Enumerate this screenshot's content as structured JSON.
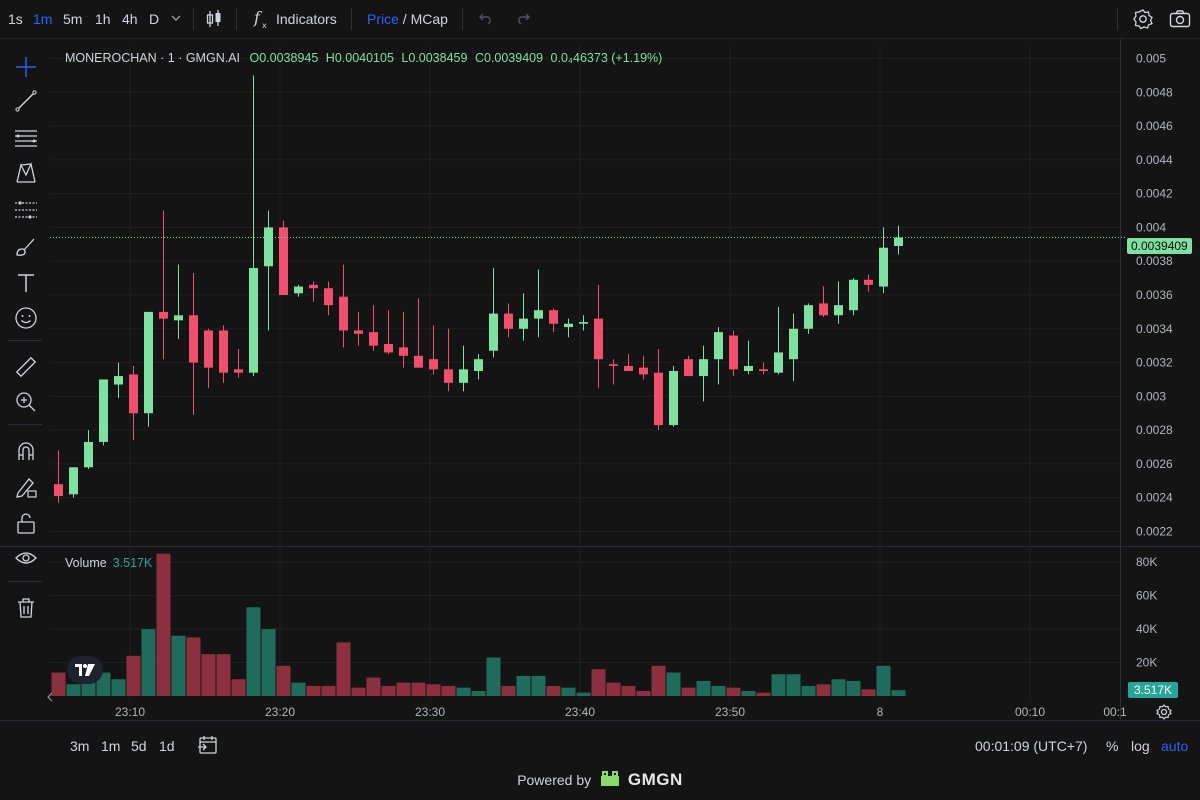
{
  "toolbar": {
    "timeframes": [
      "1s",
      "1m",
      "5m",
      "1h",
      "4h",
      "D"
    ],
    "active_timeframe": "1m",
    "indicators_label": "Indicators",
    "price_label": "Price",
    "mcap_label": "MCap",
    "toggle_sep": "/"
  },
  "legend": {
    "symbol": "MONEROCHAN · 1 · GMGN.AI",
    "open": "O0.0038945",
    "high": "H0.0040105",
    "low": "L0.0038459",
    "close": "C0.0039409",
    "change": "0.0₄46373 (+1.19%)"
  },
  "volume_legend": {
    "label": "Volume",
    "value": "3.517K"
  },
  "price_tag": "0.0039409",
  "volume_tag": "3.517K",
  "bottom": {
    "ranges": [
      "3m",
      "1m",
      "5d",
      "1d"
    ],
    "clock": "00:01:09 (UTC+7)",
    "percent": "%",
    "log": "log",
    "auto": "auto"
  },
  "footer": {
    "powered_by": "Powered by",
    "brand": "GMGN"
  },
  "colors": {
    "up": "#7ee0a1",
    "down": "#f0506e",
    "vol_up": "#1f6b5c",
    "vol_down": "#8c2f3e",
    "accent": "#2962ff",
    "background": "#141414",
    "grid": "#1f1f1f"
  },
  "chart_data": {
    "type": "candlestick",
    "x_tick_labels": [
      "23:10",
      "23:20",
      "23:30",
      "23:40",
      "23:50",
      "8",
      "00:10",
      "00:1"
    ],
    "y_tick_labels": [
      "0.005",
      "0.0048",
      "0.0046",
      "0.0044",
      "0.0042",
      "0.004",
      "0.0038",
      "0.0036",
      "0.0034",
      "0.0032",
      "0.003",
      "0.0028",
      "0.0026",
      "0.0024",
      "0.0022"
    ],
    "ylim": [
      0.00212,
      0.00508
    ],
    "volume_tick_labels": [
      "80K",
      "60K",
      "40K",
      "20K"
    ],
    "volume_ylim": [
      0,
      86000
    ],
    "last_price": 0.0039409,
    "candles": [
      {
        "o": 0.00248,
        "h": 0.00268,
        "l": 0.00237,
        "c": 0.00241,
        "v": 14000
      },
      {
        "o": 0.00242,
        "h": 0.00258,
        "l": 0.0024,
        "c": 0.00258,
        "v": 7000
      },
      {
        "o": 0.00258,
        "h": 0.0028,
        "l": 0.00257,
        "c": 0.00273,
        "v": 10000
      },
      {
        "o": 0.00273,
        "h": 0.0031,
        "l": 0.00271,
        "c": 0.0031,
        "v": 14000
      },
      {
        "o": 0.00307,
        "h": 0.0032,
        "l": 0.00299,
        "c": 0.00312,
        "v": 10000
      },
      {
        "o": 0.00313,
        "h": 0.00318,
        "l": 0.00274,
        "c": 0.0029,
        "v": 24000
      },
      {
        "o": 0.0029,
        "h": 0.0035,
        "l": 0.00282,
        "c": 0.0035,
        "v": 40000
      },
      {
        "o": 0.0035,
        "h": 0.0041,
        "l": 0.00322,
        "c": 0.00346,
        "v": 85000
      },
      {
        "o": 0.00345,
        "h": 0.00378,
        "l": 0.00334,
        "c": 0.00348,
        "v": 36000
      },
      {
        "o": 0.00348,
        "h": 0.00373,
        "l": 0.00289,
        "c": 0.0032,
        "v": 35000
      },
      {
        "o": 0.00339,
        "h": 0.0034,
        "l": 0.00305,
        "c": 0.00317,
        "v": 25000
      },
      {
        "o": 0.00339,
        "h": 0.00342,
        "l": 0.00308,
        "c": 0.00314,
        "v": 25000
      },
      {
        "o": 0.00316,
        "h": 0.00328,
        "l": 0.00311,
        "c": 0.00314,
        "v": 10000
      },
      {
        "o": 0.00314,
        "h": 0.0049,
        "l": 0.00312,
        "c": 0.00376,
        "v": 53000
      },
      {
        "o": 0.00377,
        "h": 0.0041,
        "l": 0.00339,
        "c": 0.004,
        "v": 40000
      },
      {
        "o": 0.004,
        "h": 0.00404,
        "l": 0.0036,
        "c": 0.0036,
        "v": 18000
      },
      {
        "o": 0.00361,
        "h": 0.00366,
        "l": 0.00359,
        "c": 0.00365,
        "v": 8000
      },
      {
        "o": 0.00366,
        "h": 0.00368,
        "l": 0.00356,
        "c": 0.00364,
        "v": 6000
      },
      {
        "o": 0.00364,
        "h": 0.00368,
        "l": 0.00348,
        "c": 0.00354,
        "v": 6000
      },
      {
        "o": 0.00359,
        "h": 0.00378,
        "l": 0.00329,
        "c": 0.00339,
        "v": 32000
      },
      {
        "o": 0.00339,
        "h": 0.0035,
        "l": 0.0033,
        "c": 0.00337,
        "v": 5000
      },
      {
        "o": 0.00338,
        "h": 0.00354,
        "l": 0.00327,
        "c": 0.0033,
        "v": 11000
      },
      {
        "o": 0.00331,
        "h": 0.00351,
        "l": 0.00325,
        "c": 0.00326,
        "v": 6000
      },
      {
        "o": 0.00329,
        "h": 0.0035,
        "l": 0.00317,
        "c": 0.00324,
        "v": 8000
      },
      {
        "o": 0.00324,
        "h": 0.00358,
        "l": 0.00317,
        "c": 0.00317,
        "v": 8000
      },
      {
        "o": 0.00322,
        "h": 0.00342,
        "l": 0.00313,
        "c": 0.00316,
        "v": 7000
      },
      {
        "o": 0.00316,
        "h": 0.0034,
        "l": 0.00303,
        "c": 0.00308,
        "v": 6000
      },
      {
        "o": 0.00308,
        "h": 0.0033,
        "l": 0.00303,
        "c": 0.00316,
        "v": 5000
      },
      {
        "o": 0.00315,
        "h": 0.00325,
        "l": 0.0031,
        "c": 0.00322,
        "v": 3000
      },
      {
        "o": 0.00327,
        "h": 0.00376,
        "l": 0.00323,
        "c": 0.00349,
        "v": 23000
      },
      {
        "o": 0.00349,
        "h": 0.00355,
        "l": 0.00335,
        "c": 0.0034,
        "v": 6000
      },
      {
        "o": 0.0034,
        "h": 0.00361,
        "l": 0.00333,
        "c": 0.00346,
        "v": 12000
      },
      {
        "o": 0.00346,
        "h": 0.00375,
        "l": 0.00335,
        "c": 0.00351,
        "v": 12000
      },
      {
        "o": 0.00351,
        "h": 0.00352,
        "l": 0.00338,
        "c": 0.00343,
        "v": 6000
      },
      {
        "o": 0.00341,
        "h": 0.00346,
        "l": 0.00335,
        "c": 0.00343,
        "v": 5000
      },
      {
        "o": 0.00343,
        "h": 0.00348,
        "l": 0.00339,
        "c": 0.00344,
        "v": 2000
      },
      {
        "o": 0.00346,
        "h": 0.00366,
        "l": 0.00305,
        "c": 0.00322,
        "v": 16000
      },
      {
        "o": 0.00319,
        "h": 0.00322,
        "l": 0.00307,
        "c": 0.00318,
        "v": 8000
      },
      {
        "o": 0.00318,
        "h": 0.00325,
        "l": 0.00315,
        "c": 0.00315,
        "v": 6000
      },
      {
        "o": 0.00317,
        "h": 0.00324,
        "l": 0.0031,
        "c": 0.00313,
        "v": 3000
      },
      {
        "o": 0.00314,
        "h": 0.00328,
        "l": 0.0028,
        "c": 0.00283,
        "v": 18000
      },
      {
        "o": 0.00283,
        "h": 0.00318,
        "l": 0.00282,
        "c": 0.00315,
        "v": 14000
      },
      {
        "o": 0.00322,
        "h": 0.00324,
        "l": 0.00312,
        "c": 0.00312,
        "v": 5000
      },
      {
        "o": 0.00312,
        "h": 0.0033,
        "l": 0.00297,
        "c": 0.00322,
        "v": 9000
      },
      {
        "o": 0.00322,
        "h": 0.00341,
        "l": 0.00307,
        "c": 0.00338,
        "v": 6000
      },
      {
        "o": 0.00336,
        "h": 0.00339,
        "l": 0.00312,
        "c": 0.00316,
        "v": 5000
      },
      {
        "o": 0.00315,
        "h": 0.00333,
        "l": 0.00313,
        "c": 0.00318,
        "v": 3000
      },
      {
        "o": 0.00316,
        "h": 0.0032,
        "l": 0.00313,
        "c": 0.00315,
        "v": 2000
      },
      {
        "o": 0.00314,
        "h": 0.00353,
        "l": 0.00313,
        "c": 0.00326,
        "v": 13000
      },
      {
        "o": 0.00322,
        "h": 0.00349,
        "l": 0.00309,
        "c": 0.0034,
        "v": 13000
      },
      {
        "o": 0.0034,
        "h": 0.00355,
        "l": 0.00337,
        "c": 0.00354,
        "v": 6000
      },
      {
        "o": 0.00355,
        "h": 0.00365,
        "l": 0.00347,
        "c": 0.00348,
        "v": 7000
      },
      {
        "o": 0.00348,
        "h": 0.00368,
        "l": 0.00343,
        "c": 0.00354,
        "v": 10000
      },
      {
        "o": 0.00351,
        "h": 0.0037,
        "l": 0.00348,
        "c": 0.00369,
        "v": 9000
      },
      {
        "o": 0.00369,
        "h": 0.00372,
        "l": 0.00362,
        "c": 0.00366,
        "v": 4000
      },
      {
        "o": 0.00365,
        "h": 0.004,
        "l": 0.00361,
        "c": 0.00388,
        "v": 18000
      },
      {
        "o": 0.00389,
        "h": 0.00401,
        "l": 0.00384,
        "c": 0.00394,
        "v": 3517
      }
    ]
  }
}
